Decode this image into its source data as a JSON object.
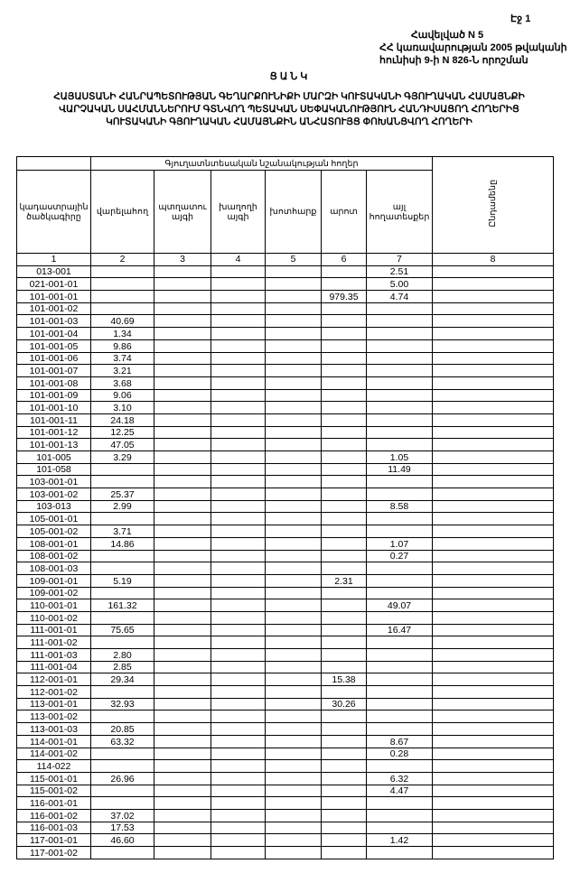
{
  "page_label": "Էջ 1",
  "annex": [
    "Հավելված N 5",
    "ՀՀ կառավարության 2005 թվականի",
    "հունիսի 9-ի N 826-Ն որոշման"
  ],
  "title": "ՑԱՆԿ",
  "subtitle": [
    "ՀԱՅԱՍՏԱՆԻ ՀԱՆՐԱՊԵՏՈՒԹՅԱՆ ԳԵՂԱՐՔՈՒՆԻՔԻ ՄԱՐԶԻ ԿՈՒՏԱԿԱՆԻ ԳՅՈՒՂԱԿԱՆ ՀԱՄԱՅՆՔԻ",
    "ՎԱՐՉԱԿԱՆ ՍԱՀՄԱՆՆԵՐՈՒՄ ԳՏՆՎՈՂ ՊԵՏԱԿԱՆ ՍԵՓԱԿԱՆՈՒԹՅՈՒՆ ՀԱՆԴԻՍԱՑՈՂ ՀՈՂԵՐԻՑ",
    "ԿՈՒՏԱԿԱՆԻ ԳՅՈՒՂԱԿԱՆ ՀԱՄԱՅՆՔԻՆ ԱՆՀԱՏՈՒՅՑ ՓՈԽԱՆՑՎՈՂ ՀՈՂԵՐԻ"
  ],
  "table": {
    "group_header": "Գյուղատնտեսական նշանակության հողեր",
    "columns": [
      "կադաստրային ծածկագիրը",
      "վարելահող",
      "պտղատու այգի",
      "խաղողի այգի",
      "խոտհարք",
      "արոտ",
      "այլ հողատեսքեր",
      "Ընդամենը"
    ],
    "column_numbers": [
      "1",
      "2",
      "3",
      "4",
      "5",
      "6",
      "7",
      "8"
    ],
    "rows": [
      [
        "013-001",
        "",
        "",
        "",
        "",
        "",
        "2.51",
        ""
      ],
      [
        "021-001-01",
        "",
        "",
        "",
        "",
        "",
        "5.00",
        ""
      ],
      [
        "101-001-01",
        "",
        "",
        "",
        "",
        "979.35",
        "4.74",
        ""
      ],
      [
        "101-001-02",
        "",
        "",
        "",
        "",
        "",
        "",
        ""
      ],
      [
        "101-001-03",
        "40.69",
        "",
        "",
        "",
        "",
        "",
        ""
      ],
      [
        "101-001-04",
        "1.34",
        "",
        "",
        "",
        "",
        "",
        ""
      ],
      [
        "101-001-05",
        "9.86",
        "",
        "",
        "",
        "",
        "",
        ""
      ],
      [
        "101-001-06",
        "3.74",
        "",
        "",
        "",
        "",
        "",
        ""
      ],
      [
        "101-001-07",
        "3.21",
        "",
        "",
        "",
        "",
        "",
        ""
      ],
      [
        "101-001-08",
        "3.68",
        "",
        "",
        "",
        "",
        "",
        ""
      ],
      [
        "101-001-09",
        "9.06",
        "",
        "",
        "",
        "",
        "",
        ""
      ],
      [
        "101-001-10",
        "3.10",
        "",
        "",
        "",
        "",
        "",
        ""
      ],
      [
        "101-001-11",
        "24.18",
        "",
        "",
        "",
        "",
        "",
        ""
      ],
      [
        "101-001-12",
        "12.25",
        "",
        "",
        "",
        "",
        "",
        ""
      ],
      [
        "101-001-13",
        "47.05",
        "",
        "",
        "",
        "",
        "",
        ""
      ],
      [
        "101-005",
        "3.29",
        "",
        "",
        "",
        "",
        "1.05",
        ""
      ],
      [
        "101-058",
        "",
        "",
        "",
        "",
        "",
        "11.49",
        ""
      ],
      [
        "103-001-01",
        "",
        "",
        "",
        "",
        "",
        "",
        ""
      ],
      [
        "103-001-02",
        "25.37",
        "",
        "",
        "",
        "",
        "",
        ""
      ],
      [
        "103-013",
        "2.99",
        "",
        "",
        "",
        "",
        "8.58",
        ""
      ],
      [
        "105-001-01",
        "",
        "",
        "",
        "",
        "",
        "",
        ""
      ],
      [
        "105-001-02",
        "3.71",
        "",
        "",
        "",
        "",
        "",
        ""
      ],
      [
        "108-001-01",
        "14.86",
        "",
        "",
        "",
        "",
        "1.07",
        ""
      ],
      [
        "108-001-02",
        "",
        "",
        "",
        "",
        "",
        "0.27",
        ""
      ],
      [
        "108-001-03",
        "",
        "",
        "",
        "",
        "",
        "",
        ""
      ],
      [
        "109-001-01",
        "5.19",
        "",
        "",
        "",
        "2.31",
        "",
        ""
      ],
      [
        "109-001-02",
        "",
        "",
        "",
        "",
        "",
        "",
        ""
      ],
      [
        "110-001-01",
        "161.32",
        "",
        "",
        "",
        "",
        "49.07",
        ""
      ],
      [
        "110-001-02",
        "",
        "",
        "",
        "",
        "",
        "",
        ""
      ],
      [
        "111-001-01",
        "75.65",
        "",
        "",
        "",
        "",
        "16.47",
        ""
      ],
      [
        "111-001-02",
        "",
        "",
        "",
        "",
        "",
        "",
        ""
      ],
      [
        "111-001-03",
        "2.80",
        "",
        "",
        "",
        "",
        "",
        ""
      ],
      [
        "111-001-04",
        "2.85",
        "",
        "",
        "",
        "",
        "",
        ""
      ],
      [
        "112-001-01",
        "29.34",
        "",
        "",
        "",
        "15.38",
        "",
        ""
      ],
      [
        "112-001-02",
        "",
        "",
        "",
        "",
        "",
        "",
        ""
      ],
      [
        "113-001-01",
        "32.93",
        "",
        "",
        "",
        "30.26",
        "",
        ""
      ],
      [
        "113-001-02",
        "",
        "",
        "",
        "",
        "",
        "",
        ""
      ],
      [
        "113-001-03",
        "20.85",
        "",
        "",
        "",
        "",
        "",
        ""
      ],
      [
        "114-001-01",
        "63.32",
        "",
        "",
        "",
        "",
        "8.67",
        ""
      ],
      [
        "114-001-02",
        "",
        "",
        "",
        "",
        "",
        "0.28",
        ""
      ],
      [
        "114-022",
        "",
        "",
        "",
        "",
        "",
        "",
        ""
      ],
      [
        "115-001-01",
        "26.96",
        "",
        "",
        "",
        "",
        "6.32",
        ""
      ],
      [
        "115-001-02",
        "",
        "",
        "",
        "",
        "",
        "4.47",
        ""
      ],
      [
        "116-001-01",
        "",
        "",
        "",
        "",
        "",
        "",
        ""
      ],
      [
        "116-001-02",
        "37.02",
        "",
        "",
        "",
        "",
        "",
        ""
      ],
      [
        "116-001-03",
        "17.53",
        "",
        "",
        "",
        "",
        "",
        ""
      ],
      [
        "117-001-01",
        "46.60",
        "",
        "",
        "",
        "",
        "1.42",
        ""
      ],
      [
        "117-001-02",
        "",
        "",
        "",
        "",
        "",
        "",
        ""
      ]
    ]
  }
}
